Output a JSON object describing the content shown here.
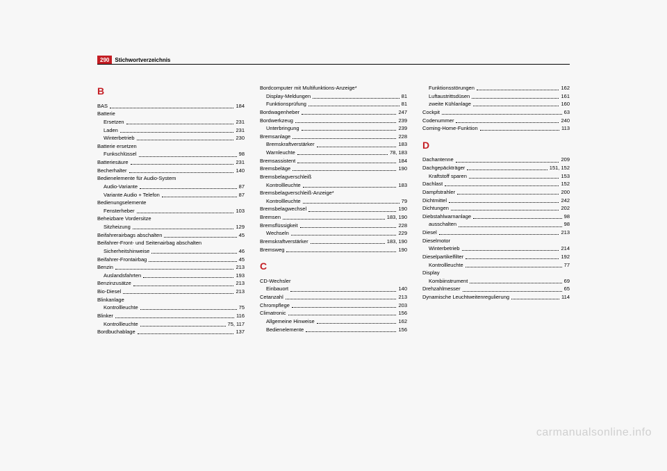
{
  "page_number": "290",
  "header_title": "Stichwortverzeichnis",
  "watermark": "carmanualsonline.info",
  "columns": [
    {
      "sections": [
        {
          "letter": "B",
          "entries": [
            {
              "label": "BAS",
              "page": "184"
            },
            {
              "label": "Batterie",
              "noline": true
            },
            {
              "label": "Ersetzen",
              "page": "231",
              "sub": true
            },
            {
              "label": "Laden",
              "page": "231",
              "sub": true
            },
            {
              "label": "Winterbetrieb",
              "page": "230",
              "sub": true
            },
            {
              "label": "Batterie ersetzen",
              "noline": true
            },
            {
              "label": "Funkschlüssel",
              "page": "98",
              "sub": true
            },
            {
              "label": "Batteriesäure",
              "page": "231"
            },
            {
              "label": "Becherhalter",
              "page": "140"
            },
            {
              "label": "Bedienelemente für Audio-System",
              "noline": true
            },
            {
              "label": "Audio-Variante",
              "page": "87",
              "sub": true
            },
            {
              "label": "Variante Audio + Telefon",
              "page": "87",
              "sub": true
            },
            {
              "label": "Bedienungselemente",
              "noline": true
            },
            {
              "label": "Fensterheber",
              "page": "103",
              "sub": true
            },
            {
              "label": "Beheizbare Vordersitze",
              "noline": true
            },
            {
              "label": "Sitzheizung",
              "page": "129",
              "sub": true
            },
            {
              "label": "Beifahrerairbags abschalten",
              "page": "45"
            },
            {
              "label": "Beifahrer-Front- und Seitenairbag abschalten",
              "noline": true
            },
            {
              "label": "Sicherheitshinweise",
              "page": "46",
              "sub": true
            },
            {
              "label": "Beifahrer-Frontairbag",
              "page": "45"
            },
            {
              "label": "Benzin",
              "page": "213"
            },
            {
              "label": "Auslandsfahrten",
              "page": "193",
              "sub": true
            },
            {
              "label": "Benzinzusätze",
              "page": "213"
            },
            {
              "label": "Bio-Diesel",
              "page": "213"
            },
            {
              "label": "Blinkanlage",
              "noline": true
            },
            {
              "label": "Kontrollleuchte",
              "page": "75",
              "sub": true
            },
            {
              "label": "Blinker",
              "page": "116"
            },
            {
              "label": "Kontrollleuchte",
              "page": "75, 117",
              "sub": true
            },
            {
              "label": "Bordbuchablage",
              "page": "137"
            }
          ]
        }
      ]
    },
    {
      "sections": [
        {
          "entries": [
            {
              "label": "Bordcomputer mit Multifunktions-Anzeige*",
              "noline": true
            },
            {
              "label": "Display-Meldungen",
              "page": "81",
              "sub": true
            },
            {
              "label": "Funktionsprüfung",
              "page": "81",
              "sub": true
            },
            {
              "label": "Bordwagenheber",
              "page": "247"
            },
            {
              "label": "Bordwerkzeug",
              "page": "239"
            },
            {
              "label": "Unterbringung",
              "page": "239",
              "sub": true
            },
            {
              "label": "Bremsanlage",
              "page": "228"
            },
            {
              "label": "Bremskraftverstärker",
              "page": "183",
              "sub": true
            },
            {
              "label": "Warnleuchte",
              "page": "78, 183",
              "sub": true
            },
            {
              "label": "Bremsassistent",
              "page": "184"
            },
            {
              "label": "Bremsbeläge",
              "page": "190"
            },
            {
              "label": "Bremsbelagverschleiß",
              "noline": true
            },
            {
              "label": "Kontrollleuchte",
              "page": "183",
              "sub": true
            },
            {
              "label": "Bremsbelagverschleiß-Anzeige*",
              "noline": true
            },
            {
              "label": "Kontrollleuchte",
              "page": "79",
              "sub": true
            },
            {
              "label": "Bremsbelagwechsel",
              "page": "190"
            },
            {
              "label": "Bremsen",
              "page": "183, 190"
            },
            {
              "label": "Bremsflüssigkeit",
              "page": "228"
            },
            {
              "label": "Wechseln",
              "page": "229",
              "sub": true
            },
            {
              "label": "Bremskraftverstärker",
              "page": "183, 190"
            },
            {
              "label": "Bremsweg",
              "page": "190"
            }
          ]
        },
        {
          "letter": "C",
          "spaced": true,
          "entries": [
            {
              "label": "CD-Wechsler",
              "noline": true
            },
            {
              "label": "Einbauort",
              "page": "140",
              "sub": true
            },
            {
              "label": "Cetanzahl",
              "page": "213"
            },
            {
              "label": "Chrompflege",
              "page": "203"
            },
            {
              "label": "Climatronic",
              "page": "156"
            },
            {
              "label": "Allgemeine Hinweise",
              "page": "162",
              "sub": true
            },
            {
              "label": "Bedienelemente",
              "page": "156",
              "sub": true
            }
          ]
        }
      ]
    },
    {
      "sections": [
        {
          "entries": [
            {
              "label": "Funktionsstörungen",
              "page": "162",
              "sub": true
            },
            {
              "label": "Luftaustrittsdüsen",
              "page": "161",
              "sub": true
            },
            {
              "label": "zweite Kühlanlage",
              "page": "160",
              "sub": true
            },
            {
              "label": "Cockpit",
              "page": "63"
            },
            {
              "label": "Codenummer",
              "page": "240"
            },
            {
              "label": "Coming-Home-Funktion",
              "page": "113"
            }
          ]
        },
        {
          "letter": "D",
          "spaced": true,
          "entries": [
            {
              "label": "Dachantenne",
              "page": "209"
            },
            {
              "label": "Dachgepäckträger",
              "page": "151, 152"
            },
            {
              "label": "Kraftstoff sparen",
              "page": "153",
              "sub": true
            },
            {
              "label": "Dachlast",
              "page": "152"
            },
            {
              "label": "Dampfstrahler",
              "page": "200"
            },
            {
              "label": "Dichtmittel",
              "page": "242"
            },
            {
              "label": "Dichtungen",
              "page": "202"
            },
            {
              "label": "Diebstahlwarnanlage",
              "page": "98"
            },
            {
              "label": "ausschalten",
              "page": "98",
              "sub": true
            },
            {
              "label": "Diesel",
              "page": "213"
            },
            {
              "label": "Dieselmotor",
              "noline": true
            },
            {
              "label": "Winterbetrieb",
              "page": "214",
              "sub": true
            },
            {
              "label": "Dieselpartikelfilter",
              "page": "192"
            },
            {
              "label": "Kontrollleuchte",
              "page": "77",
              "sub": true
            },
            {
              "label": "Display",
              "noline": true
            },
            {
              "label": "Kombiinstrument",
              "page": "69",
              "sub": true
            },
            {
              "label": "Drehzahlmesser",
              "page": "65"
            },
            {
              "label": "Dynamische Leuchtweitenregulierung",
              "page": "114"
            }
          ]
        }
      ]
    }
  ]
}
